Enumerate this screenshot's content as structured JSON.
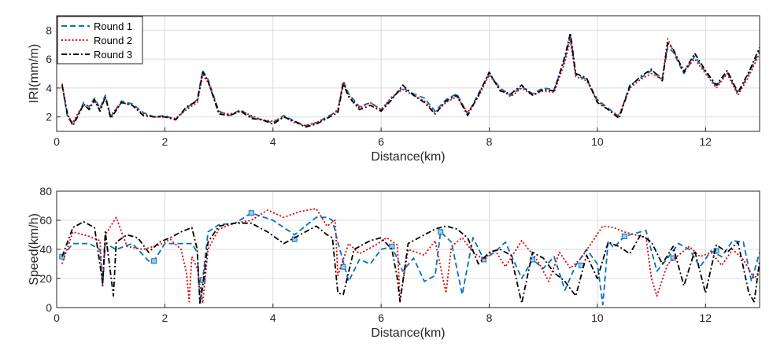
{
  "chart_data": [
    {
      "type": "line",
      "xlabel": "Distance(km)",
      "ylabel": "IRI(mm/m)",
      "xlim": [
        0,
        13
      ],
      "ylim": [
        1,
        9
      ],
      "xticks": [
        0,
        2,
        4,
        6,
        8,
        10,
        12
      ],
      "yticks": [
        2,
        4,
        6,
        8
      ],
      "grid": true,
      "legend_position": "top-left",
      "series": [
        {
          "name": "Round 1",
          "color": "#0072BD",
          "style": "dashed",
          "x": [
            0.1,
            0.2,
            0.3,
            0.4,
            0.5,
            0.6,
            0.7,
            0.8,
            0.9,
            1.0,
            1.2,
            1.4,
            1.6,
            1.8,
            2.0,
            2.2,
            2.4,
            2.6,
            2.7,
            2.8,
            3.0,
            3.2,
            3.4,
            3.6,
            3.8,
            4.0,
            4.2,
            4.4,
            4.6,
            4.8,
            5.0,
            5.2,
            5.3,
            5.4,
            5.6,
            5.8,
            6.0,
            6.2,
            6.4,
            6.6,
            6.8,
            7.0,
            7.2,
            7.4,
            7.6,
            7.8,
            8.0,
            8.2,
            8.4,
            8.6,
            8.8,
            9.0,
            9.2,
            9.4,
            9.5,
            9.6,
            9.8,
            10.0,
            10.2,
            10.4,
            10.6,
            10.8,
            11.0,
            11.2,
            11.3,
            11.4,
            11.6,
            11.8,
            12.0,
            12.2,
            12.4,
            12.6,
            12.8,
            13.0
          ],
          "y": [
            4.2,
            2.0,
            1.5,
            2.2,
            3.0,
            2.7,
            3.3,
            2.6,
            3.5,
            2.0,
            3.1,
            2.9,
            2.3,
            2.0,
            2.1,
            1.8,
            2.6,
            3.2,
            5.2,
            4.6,
            2.4,
            2.1,
            2.5,
            2.0,
            1.8,
            1.6,
            2.1,
            1.7,
            1.4,
            1.6,
            2.0,
            2.4,
            4.5,
            3.6,
            2.7,
            3.0,
            2.5,
            3.3,
            4.0,
            3.6,
            3.3,
            2.4,
            3.2,
            3.6,
            2.2,
            3.6,
            5.0,
            4.0,
            3.5,
            4.1,
            3.6,
            4.0,
            3.9,
            6.0,
            7.7,
            4.9,
            4.6,
            3.2,
            2.6,
            2.0,
            4.2,
            4.7,
            5.2,
            4.7,
            6.8,
            6.5,
            5.0,
            6.2,
            5.1,
            4.1,
            5.1,
            3.6,
            5.0,
            6.6
          ]
        },
        {
          "name": "Round 2",
          "color": "#E00000",
          "style": "dotted",
          "x": [
            0.1,
            0.2,
            0.3,
            0.4,
            0.5,
            0.6,
            0.7,
            0.8,
            0.9,
            1.0,
            1.2,
            1.4,
            1.6,
            1.8,
            2.0,
            2.2,
            2.4,
            2.6,
            2.7,
            2.8,
            3.0,
            3.2,
            3.4,
            3.6,
            3.8,
            4.0,
            4.2,
            4.4,
            4.6,
            4.8,
            5.0,
            5.2,
            5.3,
            5.4,
            5.6,
            5.8,
            6.0,
            6.2,
            6.4,
            6.6,
            6.8,
            7.0,
            7.2,
            7.4,
            7.6,
            7.8,
            8.0,
            8.2,
            8.4,
            8.6,
            8.8,
            9.0,
            9.2,
            9.4,
            9.5,
            9.6,
            9.8,
            10.0,
            10.2,
            10.4,
            10.6,
            10.8,
            11.0,
            11.2,
            11.3,
            11.4,
            11.6,
            11.8,
            12.0,
            12.2,
            12.4,
            12.6,
            12.8,
            13.0
          ],
          "y": [
            4.3,
            2.1,
            1.6,
            2.3,
            2.8,
            2.6,
            3.1,
            2.5,
            3.3,
            2.1,
            3.0,
            2.8,
            2.2,
            2.0,
            2.0,
            1.9,
            2.5,
            3.0,
            4.9,
            4.4,
            2.3,
            2.2,
            2.4,
            2.1,
            1.8,
            1.7,
            2.0,
            1.6,
            1.4,
            1.6,
            1.9,
            2.5,
            4.4,
            3.5,
            2.6,
            3.0,
            2.5,
            3.4,
            3.9,
            3.5,
            3.1,
            2.3,
            3.0,
            3.4,
            2.3,
            3.4,
            4.9,
            3.9,
            3.4,
            4.0,
            3.5,
            3.8,
            3.7,
            5.8,
            7.3,
            4.8,
            4.5,
            3.1,
            2.5,
            2.1,
            4.0,
            4.6,
            5.0,
            4.6,
            7.4,
            6.6,
            5.2,
            6.0,
            5.0,
            4.0,
            5.0,
            3.5,
            4.8,
            6.4
          ]
        },
        {
          "name": "Round 3",
          "color": "#000000",
          "style": "dashdot",
          "x": [
            0.1,
            0.2,
            0.3,
            0.4,
            0.5,
            0.6,
            0.7,
            0.8,
            0.9,
            1.0,
            1.2,
            1.4,
            1.6,
            1.8,
            2.0,
            2.2,
            2.4,
            2.6,
            2.7,
            2.8,
            3.0,
            3.2,
            3.4,
            3.6,
            3.8,
            4.0,
            4.2,
            4.4,
            4.6,
            4.8,
            5.0,
            5.2,
            5.3,
            5.4,
            5.6,
            5.8,
            6.0,
            6.2,
            6.4,
            6.6,
            6.8,
            7.0,
            7.2,
            7.4,
            7.6,
            7.8,
            8.0,
            8.2,
            8.4,
            8.6,
            8.8,
            9.0,
            9.2,
            9.4,
            9.5,
            9.6,
            9.8,
            10.0,
            10.2,
            10.4,
            10.6,
            10.8,
            11.0,
            11.2,
            11.3,
            11.4,
            11.6,
            11.8,
            12.0,
            12.2,
            12.4,
            12.6,
            12.8,
            13.0
          ],
          "y": [
            4.2,
            2.2,
            1.4,
            2.1,
            2.9,
            2.5,
            3.2,
            2.4,
            3.4,
            1.9,
            3.0,
            2.8,
            2.1,
            2.0,
            2.0,
            1.8,
            2.7,
            3.1,
            5.1,
            4.5,
            2.2,
            2.1,
            2.4,
            1.9,
            1.8,
            1.5,
            2.0,
            1.7,
            1.3,
            1.5,
            1.9,
            2.3,
            4.3,
            3.4,
            2.5,
            2.8,
            2.4,
            3.2,
            4.2,
            3.5,
            3.0,
            2.2,
            3.1,
            3.5,
            2.1,
            3.5,
            5.1,
            3.8,
            3.6,
            4.2,
            3.5,
            3.9,
            3.8,
            6.2,
            7.8,
            5.0,
            4.7,
            3.0,
            2.5,
            1.9,
            4.1,
            4.8,
            5.3,
            4.5,
            7.1,
            6.7,
            5.1,
            6.4,
            5.2,
            4.2,
            5.2,
            3.7,
            5.1,
            6.8
          ]
        }
      ]
    },
    {
      "type": "line",
      "xlabel": "Distance(km)",
      "ylabel": "Speed(km/h)",
      "xlim": [
        0,
        13
      ],
      "ylim": [
        0,
        80
      ],
      "xticks": [
        0,
        2,
        4,
        6,
        8,
        10,
        12
      ],
      "yticks": [
        0,
        20,
        40,
        60,
        80
      ],
      "grid": true,
      "series": [
        {
          "name": "Round 1",
          "color": "#0072BD",
          "style": "dashed",
          "marker": "square",
          "markers_x": [
            0.1,
            1.8,
            2.7,
            3.6,
            4.4,
            5.3,
            6.2,
            7.1,
            7.9,
            8.8,
            9.7,
            10.5,
            11.4,
            12.2
          ],
          "markers_y": [
            35,
            32,
            19,
            65,
            47,
            28,
            42,
            52,
            33,
            33,
            29,
            49,
            34,
            39
          ],
          "x": [
            0.1,
            0.3,
            0.6,
            0.8,
            0.85,
            0.9,
            1.1,
            1.4,
            1.7,
            1.8,
            2.0,
            2.3,
            2.5,
            2.6,
            2.65,
            2.7,
            2.8,
            3.0,
            3.3,
            3.6,
            4.0,
            4.4,
            4.8,
            5.0,
            5.1,
            5.2,
            5.4,
            5.6,
            5.8,
            6.0,
            6.2,
            6.4,
            6.6,
            6.8,
            7.0,
            7.1,
            7.3,
            7.5,
            7.7,
            7.9,
            8.1,
            8.3,
            8.6,
            8.8,
            9.0,
            9.2,
            9.4,
            9.6,
            9.8,
            10.0,
            10.1,
            10.2,
            10.3,
            10.5,
            10.7,
            10.9,
            11.1,
            11.3,
            11.5,
            11.7,
            11.9,
            12.1,
            12.3,
            12.5,
            12.7,
            12.85,
            13.0
          ],
          "y": [
            35,
            44,
            44,
            40,
            15,
            44,
            40,
            44,
            32,
            32,
            44,
            44,
            44,
            38,
            3,
            19,
            52,
            57,
            58,
            65,
            60,
            50,
            62,
            62,
            60,
            45,
            18,
            33,
            30,
            40,
            42,
            25,
            34,
            18,
            22,
            52,
            45,
            9,
            48,
            33,
            38,
            45,
            20,
            33,
            27,
            35,
            12,
            29,
            40,
            30,
            2,
            46,
            41,
            49,
            51,
            53,
            25,
            34,
            44,
            40,
            28,
            39,
            35,
            46,
            45,
            18,
            38
          ]
        },
        {
          "name": "Round 2",
          "color": "#E00000",
          "style": "dotted",
          "x": [
            0.1,
            0.3,
            0.6,
            0.8,
            0.85,
            0.9,
            1.1,
            1.3,
            1.6,
            1.9,
            2.1,
            2.3,
            2.4,
            2.45,
            2.5,
            2.6,
            2.7,
            2.8,
            3.0,
            3.3,
            3.6,
            3.9,
            4.2,
            4.5,
            4.8,
            5.0,
            5.15,
            5.2,
            5.4,
            5.6,
            5.9,
            6.1,
            6.3,
            6.35,
            6.5,
            6.8,
            7.0,
            7.2,
            7.3,
            7.5,
            7.7,
            7.9,
            8.1,
            8.3,
            8.6,
            8.9,
            9.1,
            9.3,
            9.5,
            9.7,
            9.9,
            10.1,
            10.3,
            10.5,
            10.7,
            10.9,
            11.0,
            11.1,
            11.3,
            11.5,
            11.7,
            11.9,
            12.1,
            12.3,
            12.5,
            12.7,
            12.9,
            13.0
          ],
          "y": [
            30,
            52,
            49,
            46,
            14,
            50,
            62,
            42,
            40,
            43,
            47,
            40,
            24,
            4,
            35,
            27,
            3,
            40,
            54,
            58,
            60,
            67,
            62,
            66,
            68,
            56,
            60,
            22,
            44,
            37,
            43,
            48,
            43,
            5,
            40,
            36,
            46,
            10,
            42,
            48,
            38,
            33,
            40,
            28,
            46,
            32,
            18,
            38,
            27,
            34,
            45,
            56,
            55,
            52,
            50,
            48,
            20,
            8,
            30,
            36,
            42,
            35,
            38,
            29,
            40,
            33,
            20,
            25
          ]
        },
        {
          "name": "Round 3",
          "color": "#000000",
          "style": "dashdot",
          "x": [
            0.1,
            0.3,
            0.5,
            0.7,
            0.85,
            0.9,
            1.05,
            1.1,
            1.3,
            1.5,
            1.7,
            1.9,
            2.1,
            2.3,
            2.5,
            2.6,
            2.65,
            2.7,
            2.8,
            3.0,
            3.3,
            3.6,
            3.9,
            4.2,
            4.5,
            4.8,
            5.0,
            5.1,
            5.2,
            5.3,
            5.5,
            5.8,
            6.0,
            6.2,
            6.3,
            6.35,
            6.5,
            6.8,
            7.0,
            7.2,
            7.4,
            7.6,
            7.8,
            8.0,
            8.2,
            8.4,
            8.6,
            8.8,
            9.0,
            9.2,
            9.4,
            9.6,
            9.8,
            10.0,
            10.2,
            10.4,
            10.6,
            10.8,
            11.0,
            11.2,
            11.4,
            11.6,
            11.8,
            12.0,
            12.2,
            12.4,
            12.6,
            12.8,
            12.9,
            13.0
          ],
          "y": [
            35,
            55,
            59,
            55,
            17,
            52,
            8,
            45,
            50,
            48,
            38,
            45,
            48,
            52,
            55,
            40,
            3,
            14,
            45,
            56,
            58,
            58,
            52,
            44,
            50,
            56,
            50,
            48,
            10,
            9,
            40,
            46,
            48,
            40,
            20,
            4,
            44,
            50,
            54,
            56,
            54,
            48,
            30,
            38,
            40,
            36,
            3,
            38,
            34,
            24,
            18,
            8,
            36,
            20,
            45,
            42,
            37,
            50,
            45,
            30,
            42,
            15,
            39,
            10,
            43,
            38,
            45,
            10,
            4,
            32
          ]
        }
      ]
    }
  ]
}
